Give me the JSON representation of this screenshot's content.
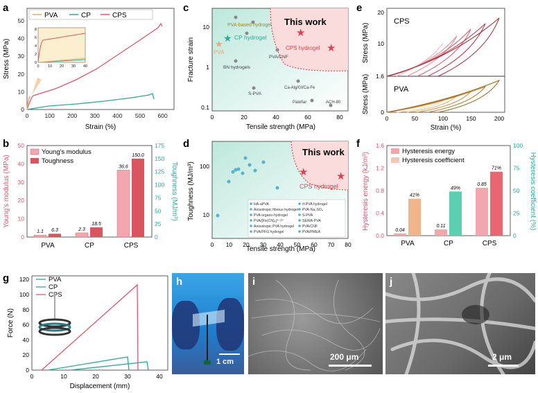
{
  "panels": {
    "a": {
      "letter": "a",
      "ylabel": "Stress (MPa)",
      "xlabel": "Strain (%)",
      "xticks": [
        "0",
        "100",
        "200",
        "300",
        "400",
        "500",
        "600"
      ],
      "yticks": [
        "0",
        "10",
        "20",
        "30",
        "40",
        "50"
      ],
      "legend": [
        "PVA",
        "CP",
        "CPS"
      ],
      "inset": {
        "xticks": [
          "0",
          "10",
          "20",
          "30",
          "40"
        ],
        "yticks": [
          "0",
          "2",
          "4",
          "6",
          "8"
        ]
      }
    },
    "b": {
      "letter": "b",
      "ylabel": "Young's modulus (MPa)",
      "ylabel2": "Toughness (MJ/m³)",
      "categories": [
        "PVA",
        "CP",
        "CPS"
      ],
      "legend": [
        "Young's modulus",
        "Toughness"
      ],
      "yticks": [
        "0",
        "10",
        "20",
        "30",
        "40",
        "50"
      ],
      "y2ticks": [
        "0",
        "25",
        "50",
        "75",
        "100",
        "125",
        "150",
        "175"
      ]
    },
    "c": {
      "letter": "c",
      "ylabel": "Fracture strain",
      "xlabel": "Tensile strength (MPa)",
      "xticks": [
        "0",
        "20",
        "40",
        "60",
        "80"
      ],
      "yticks": [
        "0.1",
        "1",
        "10"
      ],
      "this_work": "This work",
      "labels": [
        "PVA-based hydrogel",
        "CP hydrogel",
        "PVA",
        "CPS hydrogel",
        "BN hydrogels",
        "PVA/CNF",
        "Ca-Alg/Gl/Ca-Fe",
        "S-PVA",
        "Paleflar",
        "ACH-80"
      ]
    },
    "d": {
      "letter": "d",
      "ylabel": "Toughness (MJ/m³)",
      "xlabel": "Tensile strength (MPa)",
      "xticks": [
        "0",
        "10",
        "20",
        "30",
        "40",
        "50",
        "60",
        "70",
        "80"
      ],
      "yticks": [
        "10",
        "100"
      ],
      "this_work": "This work",
      "cps": "CPS hydrogel",
      "legend": [
        "HA-aPVA",
        "Anisotropic fibrous hydrogel",
        "PVA organo-hydrogel",
        "PVA/[Fe(CN)₆]⁴⁻/³⁻",
        "Anisotropic PVA hydrogel",
        "PVA/PFG hydrogel",
        "rf-PVA hydrogel",
        "PVA-Na₂SO₄",
        "S-PVA",
        "SEWA-PVA",
        "PVA/CNF",
        "PVA/PMEA"
      ]
    },
    "e": {
      "letter": "e",
      "ylabel": "Stress (MPa)",
      "xlabel": "Strain (%)",
      "top_label": "CPS",
      "bottom_label": "PVA",
      "xticks": [
        "0",
        "50",
        "100",
        "150",
        "200"
      ],
      "ytop": [
        "10",
        "20"
      ],
      "ybottom": [
        "0",
        "1.6"
      ]
    },
    "f": {
      "letter": "f",
      "ylabel": "Hysteresis energy (kJ/m³)",
      "ylabel2": "Hysteresis coefficient (%)",
      "categories": [
        "PVA",
        "CP",
        "CPS"
      ],
      "legend": [
        "Hysteresis energy",
        "Hysteresis coefficient"
      ],
      "yticks": [
        "0.0",
        "0.4",
        "0.8",
        "1.2",
        "1.6"
      ],
      "y2ticks": [
        "0",
        "25",
        "50",
        "75",
        "100"
      ]
    },
    "g": {
      "letter": "g",
      "ylabel": "Force (N)",
      "xlabel": "Displacement (mm)",
      "legend": [
        "PVA",
        "CP",
        "CPS"
      ],
      "xticks": [
        "0",
        "10",
        "20",
        "30",
        "40"
      ],
      "yticks": [
        "0",
        "20",
        "40",
        "60",
        "80",
        "100",
        "120"
      ]
    },
    "h": {
      "letter": "h",
      "scale": "1 cm"
    },
    "i": {
      "letter": "i",
      "scale": "200 μm"
    },
    "j": {
      "letter": "j",
      "scale": "2 μm"
    }
  },
  "chart_data": [
    {
      "panel": "a",
      "type": "line",
      "title": "",
      "xlabel": "Strain (%)",
      "ylabel": "Stress (MPa)",
      "xlim": [
        0,
        650
      ],
      "ylim": [
        0,
        57
      ],
      "series": [
        {
          "name": "PVA",
          "x": [
            0,
            2,
            4,
            7,
            9
          ],
          "y": [
            0,
            2,
            5,
            7,
            8
          ]
        },
        {
          "name": "CP",
          "x": [
            0,
            100,
            200,
            300,
            400,
            460,
            470
          ],
          "y": [
            0,
            2,
            3.5,
            5.5,
            8,
            9.5,
            7
          ]
        },
        {
          "name": "CPS",
          "x": [
            0,
            10,
            100,
            200,
            300,
            400,
            500,
            580,
            590
          ],
          "y": [
            0,
            5,
            12,
            20,
            28,
            37,
            46,
            54,
            52
          ]
        }
      ],
      "color": {
        "PVA": "#e8a870",
        "CP": "#2aab9a",
        "CPS": "#e0566c"
      }
    },
    {
      "panel": "b",
      "type": "bar",
      "categories": [
        "PVA",
        "CP",
        "CPS"
      ],
      "series": [
        {
          "name": "Young's modulus",
          "values": [
            1.1,
            2.3,
            36.6
          ],
          "axis": "MPa"
        },
        {
          "name": "Toughness",
          "values": [
            6.3,
            18.5,
            150.0
          ],
          "axis": "MJ/m³"
        }
      ],
      "ylim": [
        0,
        50
      ],
      "y2lim": [
        0,
        175
      ],
      "value_labels": [
        "1.1",
        "6.3",
        "2.3",
        "18.5",
        "36.6",
        "150.0"
      ]
    },
    {
      "panel": "c",
      "type": "scatter",
      "xlabel": "Tensile strength (MPa)",
      "ylabel": "Fracture strain",
      "xlim": [
        0,
        85
      ],
      "ylim": [
        0.1,
        15
      ],
      "series": [
        {
          "name": "This work",
          "x": [
            54,
            76
          ],
          "y": [
            5.5,
            2.7
          ]
        },
        {
          "name": "PVA-based hydrogel",
          "x": [
            14,
            24,
            27
          ],
          "y": [
            14,
            12,
            7
          ]
        },
        {
          "name": "CP hydrogel",
          "x": [
            10
          ],
          "y": [
            4.3
          ]
        },
        {
          "name": "PVA",
          "x": [
            5
          ],
          "y": [
            3.2
          ]
        },
        {
          "name": "PVA/CNF",
          "x": [
            40
          ],
          "y": [
            2.8
          ]
        },
        {
          "name": "BN hydrogels",
          "x": [
            16
          ],
          "y": [
            1.5
          ]
        },
        {
          "name": "Ca-Alg/Gl/Ca-Fe",
          "x": [
            57
          ],
          "y": [
            0.5
          ]
        },
        {
          "name": "S-PVA",
          "x": [
            26
          ],
          "y": [
            0.3
          ]
        },
        {
          "name": "Paleflar",
          "x": [
            63
          ],
          "y": [
            0.15
          ]
        },
        {
          "name": "ACH-80",
          "x": [
            73
          ],
          "y": [
            0.11
          ]
        }
      ]
    },
    {
      "panel": "d",
      "type": "scatter",
      "xlabel": "Tensile strength (MPa)",
      "ylabel": "Toughness (MJ/m³)",
      "xlim": [
        0,
        80
      ],
      "ylim": [
        5,
        500
      ],
      "series": [
        {
          "name": "This work",
          "x": [
            54,
            76
          ],
          "y": [
            150,
            110
          ]
        },
        {
          "name": "Literature",
          "x": [
            3,
            10,
            12,
            14,
            16,
            18,
            20,
            22,
            25,
            30,
            38
          ],
          "y": [
            10,
            80,
            140,
            150,
            160,
            120,
            260,
            200,
            150,
            210,
            60
          ]
        }
      ]
    },
    {
      "panel": "e",
      "type": "line",
      "xlabel": "Strain (%)",
      "ylabel": "Stress (MPa)",
      "xlim": [
        0,
        210
      ],
      "series": [
        {
          "name": "CPS",
          "max_strain": [
            100,
            125,
            150,
            175,
            200
          ],
          "max_stress": [
            9,
            11,
            13,
            15.5,
            18
          ]
        },
        {
          "name": "PVA",
          "max_strain": [
            100,
            125,
            150,
            175,
            200
          ],
          "max_stress": [
            0.6,
            0.8,
            1.0,
            1.2,
            1.5
          ]
        }
      ]
    },
    {
      "panel": "f",
      "type": "bar",
      "categories": [
        "PVA",
        "CP",
        "CPS"
      ],
      "series": [
        {
          "name": "Hysteresis energy",
          "values": [
            0.04,
            0.11,
            0.85
          ]
        },
        {
          "name": "Hysteresis coefficient",
          "values": [
            41,
            49,
            71
          ]
        }
      ],
      "ylim": [
        0,
        1.6
      ],
      "y2lim": [
        0,
        100
      ],
      "value_labels": [
        "0.04",
        "41%",
        "0.11",
        "49%",
        "0.85",
        "71%"
      ]
    },
    {
      "panel": "g",
      "type": "line",
      "xlabel": "Displacement (mm)",
      "ylabel": "Force (N)",
      "xlim": [
        0,
        40
      ],
      "ylim": [
        0,
        125
      ],
      "series": [
        {
          "name": "PVA",
          "x": [
            5,
            30,
            30.5
          ],
          "y": [
            0,
            17,
            0
          ]
        },
        {
          "name": "CP",
          "x": [
            12,
            36,
            36.5
          ],
          "y": [
            0,
            11,
            0
          ]
        },
        {
          "name": "CPS",
          "x": [
            3,
            33,
            33.5
          ],
          "y": [
            0,
            108,
            0
          ]
        }
      ]
    }
  ]
}
